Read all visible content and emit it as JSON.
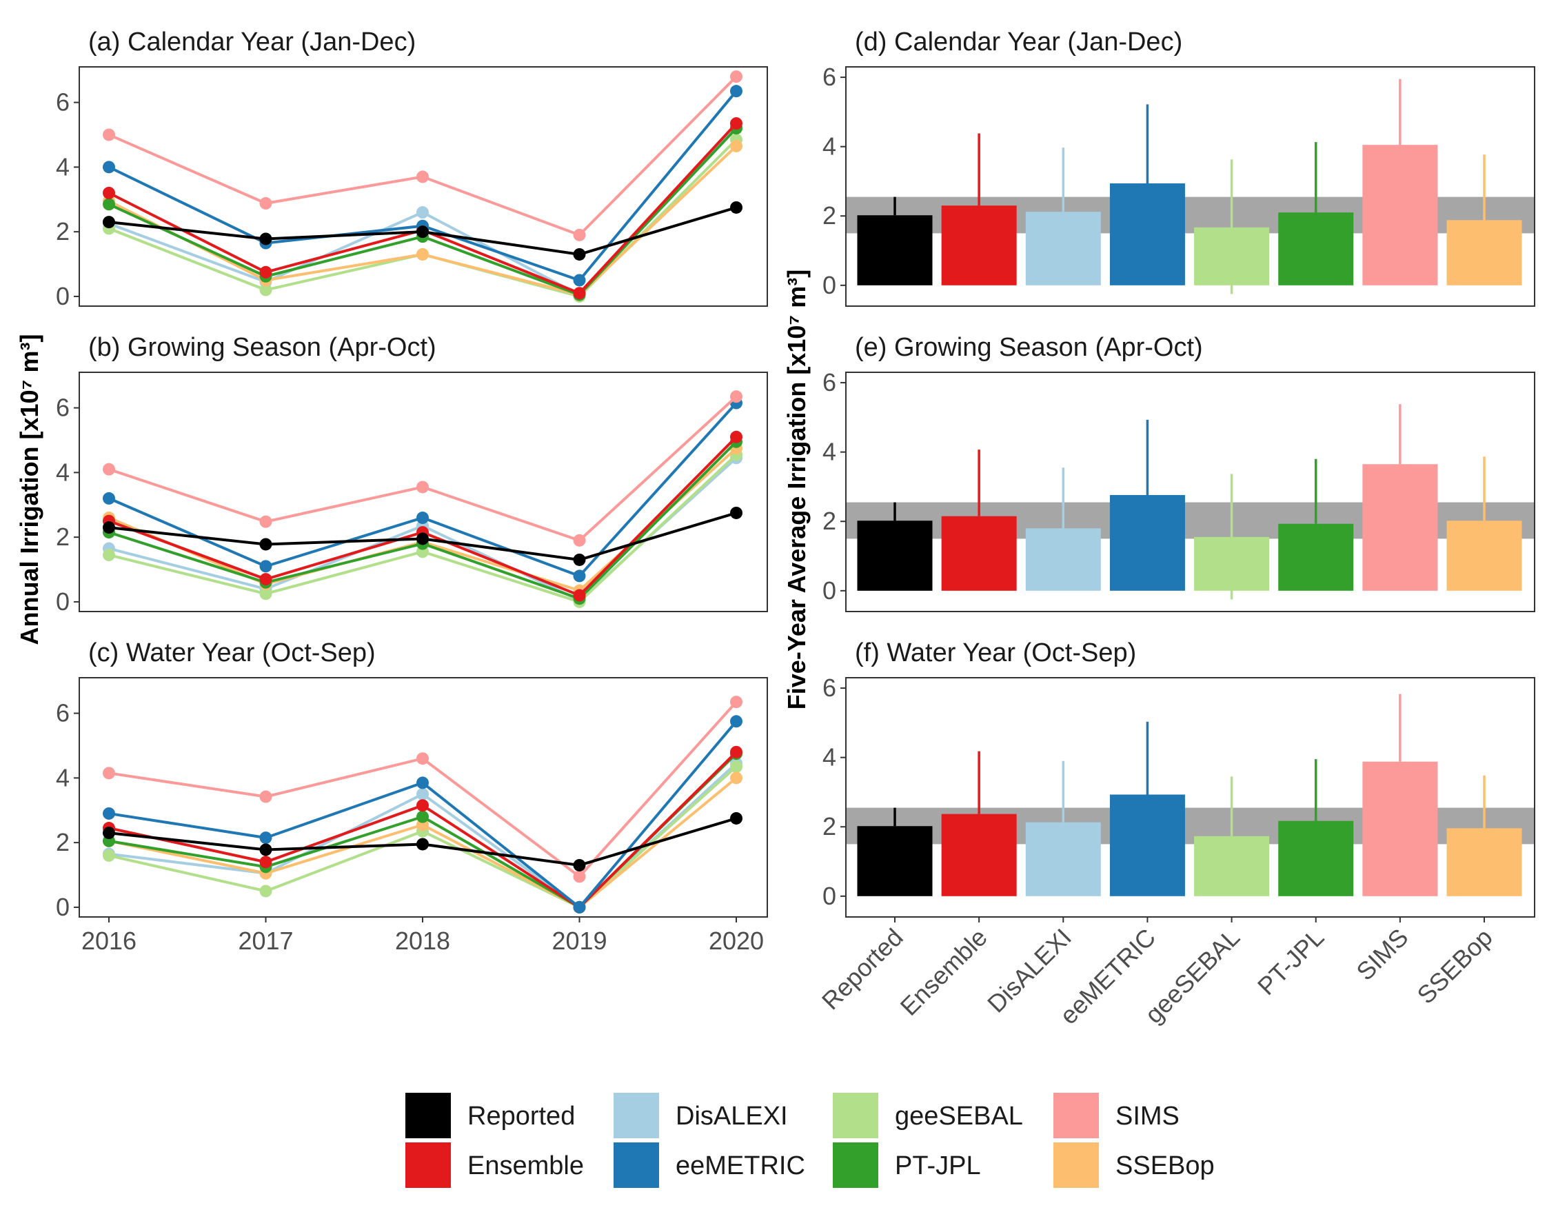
{
  "figure": {
    "left_ylabel": "Annual Irrigation [x10⁷ m³]",
    "right_ylabel": "Five-Year Average Irrigation [x10⁷ m³]"
  },
  "colors": {
    "Reported": "#000000",
    "Ensemble": "#E31A1C",
    "DisALEXI": "#A6CEE3",
    "eeMETRIC": "#1F78B4",
    "geeSEBAL": "#B2DF8A",
    "PT-JPL": "#33A02C",
    "SIMS": "#FB9A99",
    "SSEBop": "#FDBF6F",
    "band": "#A6A6A6"
  },
  "legend": {
    "items": [
      "Reported",
      "Ensemble",
      "DisALEXI",
      "eeMETRIC",
      "geeSEBAL",
      "PT-JPL",
      "SIMS",
      "SSEBop"
    ]
  },
  "chart_data": [
    {
      "type": "line",
      "title": "(a) Calendar Year (Jan-Dec)",
      "x": [
        "2016",
        "2017",
        "2018",
        "2019",
        "2020"
      ],
      "ylim": [
        -0.3,
        7.1
      ],
      "yticks": [
        0,
        2,
        4,
        6
      ],
      "series": [
        {
          "name": "Reported",
          "values": [
            2.3,
            1.78,
            2.0,
            1.3,
            2.75
          ]
        },
        {
          "name": "DisALEXI",
          "values": [
            2.25,
            0.45,
            2.6,
            0.05,
            5.25
          ]
        },
        {
          "name": "geeSEBAL",
          "values": [
            2.1,
            0.2,
            1.3,
            0.0,
            4.85
          ]
        },
        {
          "name": "SSEBop",
          "values": [
            2.95,
            0.5,
            1.3,
            0.05,
            4.65
          ]
        },
        {
          "name": "PT-JPL",
          "values": [
            2.85,
            0.62,
            1.85,
            0.05,
            5.2
          ]
        },
        {
          "name": "Ensemble",
          "values": [
            3.2,
            0.75,
            2.05,
            0.1,
            5.35
          ]
        },
        {
          "name": "eeMETRIC",
          "values": [
            4.0,
            1.65,
            2.18,
            0.5,
            6.35
          ]
        },
        {
          "name": "SIMS",
          "values": [
            5.0,
            2.88,
            3.7,
            1.9,
            6.8
          ]
        }
      ]
    },
    {
      "type": "line",
      "title": "(b) Growing Season (Apr-Oct)",
      "x": [
        "2016",
        "2017",
        "2018",
        "2019",
        "2020"
      ],
      "ylim": [
        -0.3,
        7.1
      ],
      "yticks": [
        0,
        2,
        4,
        6
      ],
      "series": [
        {
          "name": "Reported",
          "values": [
            2.3,
            1.78,
            1.95,
            1.3,
            2.75
          ]
        },
        {
          "name": "DisALEXI",
          "values": [
            1.65,
            0.4,
            2.35,
            0.05,
            4.45
          ]
        },
        {
          "name": "geeSEBAL",
          "values": [
            1.45,
            0.25,
            1.55,
            0.0,
            4.55
          ]
        },
        {
          "name": "SSEBop",
          "values": [
            2.6,
            0.55,
            1.85,
            0.35,
            4.75
          ]
        },
        {
          "name": "PT-JPL",
          "values": [
            2.15,
            0.6,
            1.8,
            0.1,
            4.95
          ]
        },
        {
          "name": "Ensemble",
          "values": [
            2.5,
            0.7,
            2.15,
            0.2,
            5.1
          ]
        },
        {
          "name": "eeMETRIC",
          "values": [
            3.2,
            1.1,
            2.6,
            0.8,
            6.15
          ]
        },
        {
          "name": "SIMS",
          "values": [
            4.1,
            2.48,
            3.55,
            1.9,
            6.35
          ]
        }
      ]
    },
    {
      "type": "line",
      "title": "(c) Water Year (Oct-Sep)",
      "x": [
        "2016",
        "2017",
        "2018",
        "2019",
        "2020"
      ],
      "ylim": [
        -0.3,
        7.1
      ],
      "yticks": [
        0,
        2,
        4,
        6
      ],
      "series": [
        {
          "name": "Reported",
          "values": [
            2.3,
            1.78,
            1.95,
            1.3,
            2.75
          ]
        },
        {
          "name": "DisALEXI",
          "values": [
            1.65,
            1.05,
            3.5,
            0.0,
            4.45
          ]
        },
        {
          "name": "geeSEBAL",
          "values": [
            1.6,
            0.5,
            2.35,
            0.0,
            4.35
          ]
        },
        {
          "name": "SSEBop",
          "values": [
            2.05,
            1.05,
            2.55,
            0.0,
            4.0
          ]
        },
        {
          "name": "PT-JPL",
          "values": [
            2.05,
            1.25,
            2.8,
            0.0,
            4.75
          ]
        },
        {
          "name": "Ensemble",
          "values": [
            2.45,
            1.4,
            3.15,
            0.0,
            4.8
          ]
        },
        {
          "name": "eeMETRIC",
          "values": [
            2.9,
            2.15,
            3.85,
            0.0,
            5.75
          ]
        },
        {
          "name": "SIMS",
          "values": [
            4.15,
            3.42,
            4.6,
            0.95,
            6.35
          ]
        }
      ]
    },
    {
      "type": "bar",
      "title": "(d) Calendar Year (Jan-Dec)",
      "categories": [
        "Reported",
        "Ensemble",
        "DisALEXI",
        "eeMETRIC",
        "geeSEBAL",
        "PT-JPL",
        "SIMS",
        "SSEBop"
      ],
      "values": [
        2.02,
        2.3,
        2.12,
        2.94,
        1.67,
        2.1,
        4.05,
        1.88
      ],
      "error_upper": [
        2.55,
        4.38,
        3.97,
        5.22,
        3.63,
        4.13,
        5.95,
        3.77
      ],
      "error_lower": [
        2.02,
        2.3,
        2.12,
        2.94,
        -0.25,
        2.1,
        4.05,
        1.88
      ],
      "band": [
        1.5,
        2.55
      ],
      "ylim": [
        -0.6,
        6.3
      ],
      "yticks": [
        0,
        2,
        4,
        6
      ]
    },
    {
      "type": "bar",
      "title": "(e) Growing Season (Apr-Oct)",
      "categories": [
        "Reported",
        "Ensemble",
        "DisALEXI",
        "eeMETRIC",
        "geeSEBAL",
        "PT-JPL",
        "SIMS",
        "SSEBop"
      ],
      "values": [
        2.02,
        2.15,
        1.8,
        2.76,
        1.55,
        1.93,
        3.65,
        2.02
      ],
      "error_upper": [
        2.55,
        4.07,
        3.55,
        4.93,
        3.37,
        3.8,
        5.38,
        3.87
      ],
      "error_lower": [
        2.02,
        2.15,
        1.8,
        2.76,
        -0.25,
        1.93,
        3.65,
        2.02
      ],
      "band": [
        1.5,
        2.55
      ],
      "ylim": [
        -0.6,
        6.3
      ],
      "yticks": [
        0,
        2,
        4,
        6
      ]
    },
    {
      "type": "bar",
      "title": "(f) Water Year (Oct-Sep)",
      "categories": [
        "Reported",
        "Ensemble",
        "DisALEXI",
        "eeMETRIC",
        "geeSEBAL",
        "PT-JPL",
        "SIMS",
        "SSEBop"
      ],
      "values": [
        2.02,
        2.37,
        2.13,
        2.93,
        1.73,
        2.17,
        3.88,
        1.96
      ],
      "error_upper": [
        2.55,
        4.18,
        3.9,
        5.03,
        3.45,
        3.95,
        5.83,
        3.48
      ],
      "error_lower": [
        2.02,
        2.37,
        2.13,
        2.93,
        1.73,
        2.17,
        3.88,
        1.96
      ],
      "band": [
        1.5,
        2.55
      ],
      "ylim": [
        -0.6,
        6.3
      ],
      "yticks": [
        0,
        2,
        4,
        6
      ]
    }
  ]
}
